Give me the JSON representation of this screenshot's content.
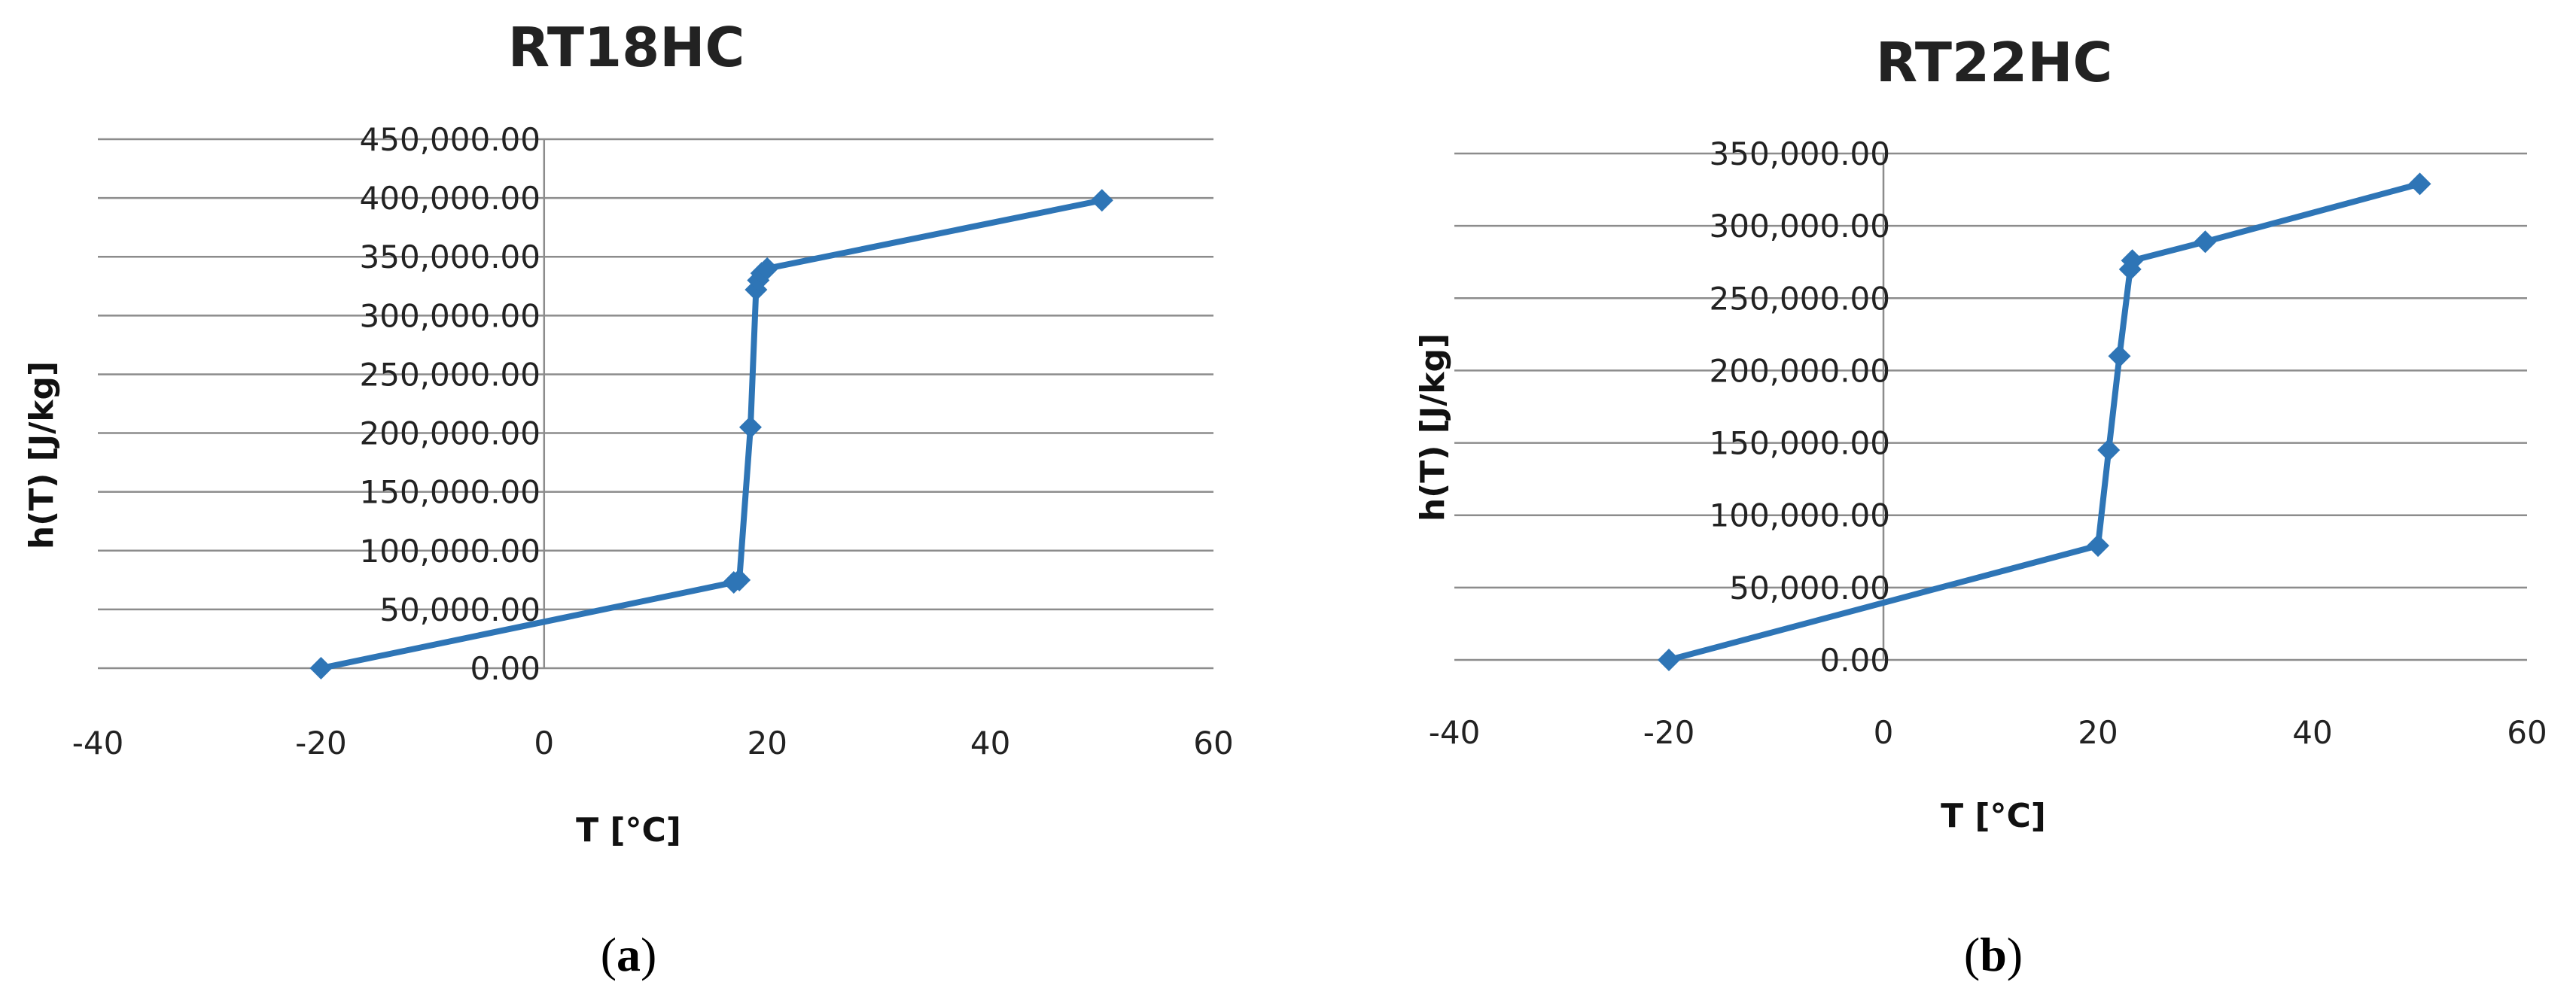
{
  "chart_data": [
    {
      "type": "scatter",
      "panel_label": "(a)",
      "panel_letter": "a",
      "title": "RT18HC",
      "xlabel": "T [°C]",
      "ylabel": "h(T) [J/kg]",
      "xlim": [
        -40,
        60
      ],
      "ylim": [
        0,
        450000
      ],
      "x_ticks": [
        -40,
        -20,
        0,
        20,
        40,
        60
      ],
      "x_tick_labels": [
        "-40",
        "-20",
        "0",
        "20",
        "40",
        "60"
      ],
      "y_ticks": [
        0,
        50000,
        100000,
        150000,
        200000,
        250000,
        300000,
        350000,
        400000,
        450000
      ],
      "y_tick_labels": [
        "0.00",
        "50,000.00",
        "100,000.00",
        "150,000.00",
        "200,000.00",
        "250,000.00",
        "300,000.00",
        "350,000.00",
        "400,000.00",
        "450,000.00"
      ],
      "grid": true,
      "marker": "diamond",
      "line": true,
      "color": "#2e75b6",
      "series": [
        {
          "x": [
            -20,
            17,
            17.5,
            18.5,
            19,
            19.2,
            19.5,
            20,
            50
          ],
          "y": [
            0,
            73000,
            75000,
            205000,
            322000,
            330000,
            336000,
            340000,
            398000
          ]
        }
      ]
    },
    {
      "type": "scatter",
      "panel_label": "(b)",
      "panel_letter": "b",
      "title": "RT22HC",
      "xlabel": "T [°C]",
      "ylabel": "h(T) [J/kg]",
      "xlim": [
        -40,
        60
      ],
      "ylim": [
        0,
        350000
      ],
      "x_ticks": [
        -40,
        -20,
        0,
        20,
        40,
        60
      ],
      "x_tick_labels": [
        "-40",
        "-20",
        "0",
        "20",
        "40",
        "60"
      ],
      "y_ticks": [
        0,
        50000,
        100000,
        150000,
        200000,
        250000,
        300000,
        350000
      ],
      "y_tick_labels": [
        "0.00",
        "50,000.00",
        "100,000.00",
        "150,000.00",
        "200,000.00",
        "250,000.00",
        "300,000.00",
        "350,000.00"
      ],
      "grid": true,
      "marker": "diamond",
      "line": true,
      "color": "#2e75b6",
      "series": [
        {
          "x": [
            -20,
            20,
            21,
            22,
            23,
            23.2,
            30,
            50
          ],
          "y": [
            0,
            79000,
            145000,
            210000,
            270000,
            276000,
            289000,
            329000
          ]
        }
      ]
    }
  ]
}
